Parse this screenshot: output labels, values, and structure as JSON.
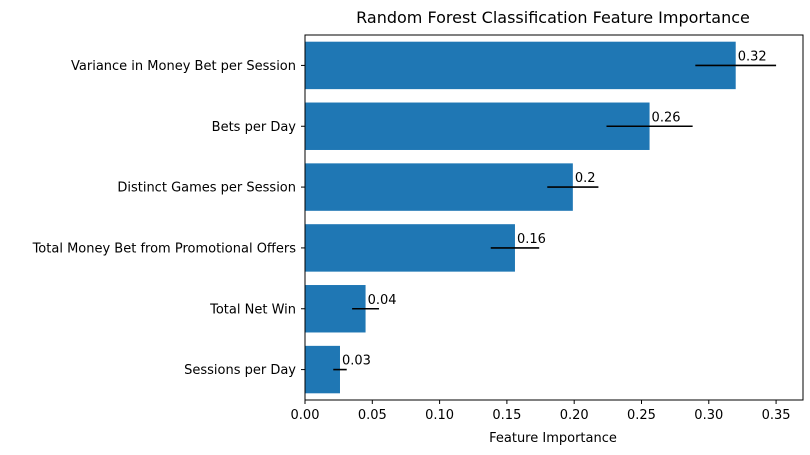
{
  "chart_data": {
    "type": "bar",
    "orientation": "horizontal",
    "title": "Random Forest Classification Feature Importance",
    "xlabel": "Feature Importance",
    "ylabel": "",
    "xlim": [
      0,
      0.37
    ],
    "x_ticks": [
      0.0,
      0.05,
      0.1,
      0.15,
      0.2,
      0.25,
      0.3,
      0.35
    ],
    "x_tick_labels": [
      "0.00",
      "0.05",
      "0.10",
      "0.15",
      "0.20",
      "0.25",
      "0.30",
      "0.35"
    ],
    "grid": false,
    "bar_color": "#1f77b4",
    "error_bar_color": "#000000",
    "categories": [
      "Variance in Money Bet per Session",
      "Bets per Day",
      "Distinct Games per Session",
      "Total Money Bet from Promotional Offers",
      "Total Net Win",
      "Sessions per Day"
    ],
    "values": [
      0.32,
      0.256,
      0.199,
      0.156,
      0.045,
      0.026
    ],
    "errors": [
      0.03,
      0.032,
      0.019,
      0.018,
      0.01,
      0.005
    ],
    "data_labels": [
      "0.32",
      "0.26",
      "0.2",
      "0.16",
      "0.04",
      "0.03"
    ]
  }
}
